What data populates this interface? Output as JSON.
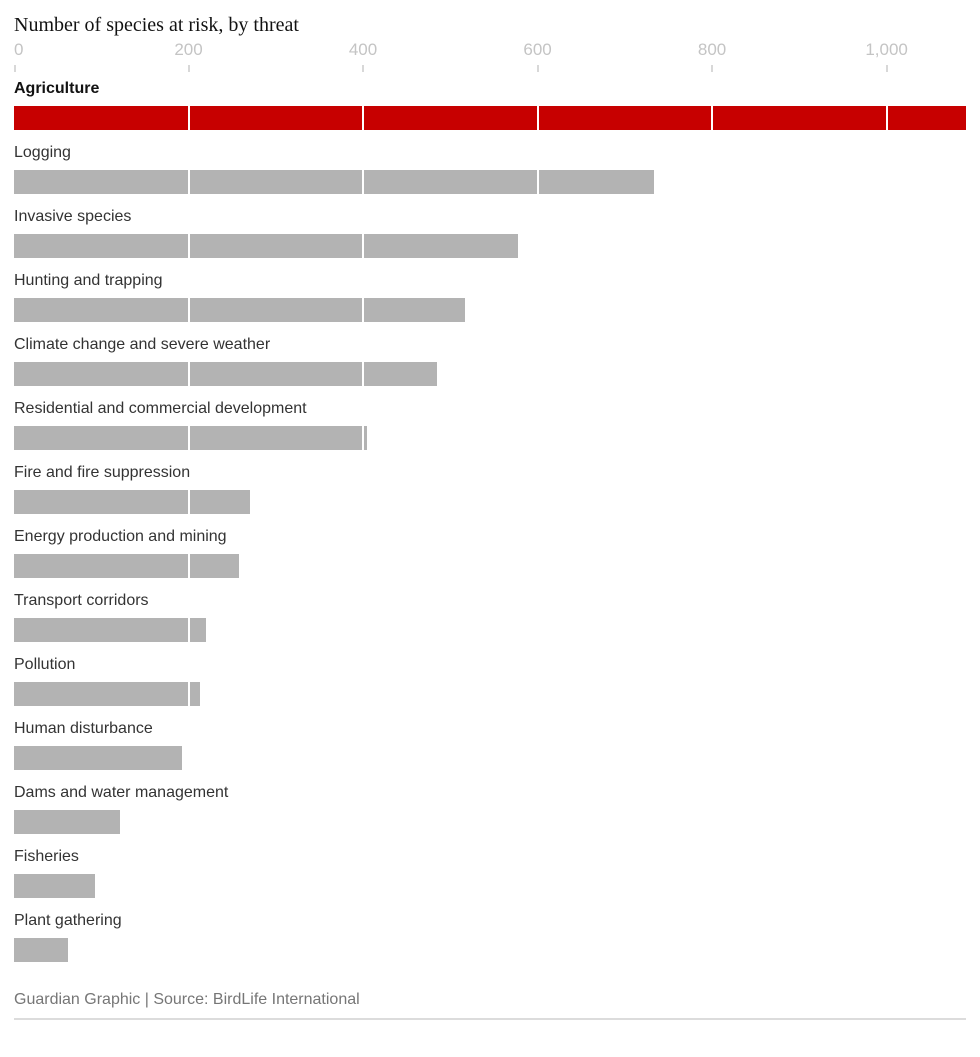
{
  "title": "Number of species at risk, by threat",
  "footer": {
    "credit": "Guardian Graphic | Source: BirdLife International"
  },
  "colors": {
    "highlight_bar": "#c70000",
    "bar": "#b3b3b3",
    "gridline": "#ffffff",
    "title_text": "#121212",
    "label_text": "#333333",
    "axis_text": "#c4c4c4",
    "footer_text": "#767676",
    "rule": "#dcdcdc"
  },
  "chart_data": {
    "type": "bar",
    "orientation": "horizontal",
    "title": "Number of species at risk, by threat",
    "xlabel": "",
    "ylabel": "",
    "categories": [
      "Agriculture",
      "Logging",
      "Invasive species",
      "Hunting and trapping",
      "Climate change and severe weather",
      "Residential and commercial development",
      "Fire and fire suppression",
      "Energy production and mining",
      "Transport corridors",
      "Pollution",
      "Human disturbance",
      "Dams and water management",
      "Fisheries",
      "Plant gathering"
    ],
    "values": [
      1091,
      734,
      578,
      517,
      485,
      405,
      270,
      258,
      220,
      213,
      192,
      121,
      93,
      62
    ],
    "highlighted_category": "Agriculture",
    "xlim": [
      0,
      1091
    ],
    "x_ticks": [
      0,
      200,
      400,
      600,
      800,
      1000
    ],
    "x_tick_labels": [
      "0",
      "200",
      "400",
      "600",
      "800",
      "1,000"
    ],
    "legend": "none",
    "grid": "white vertical gridlines drawn over bars at each x tick",
    "source": "BirdLife International"
  }
}
